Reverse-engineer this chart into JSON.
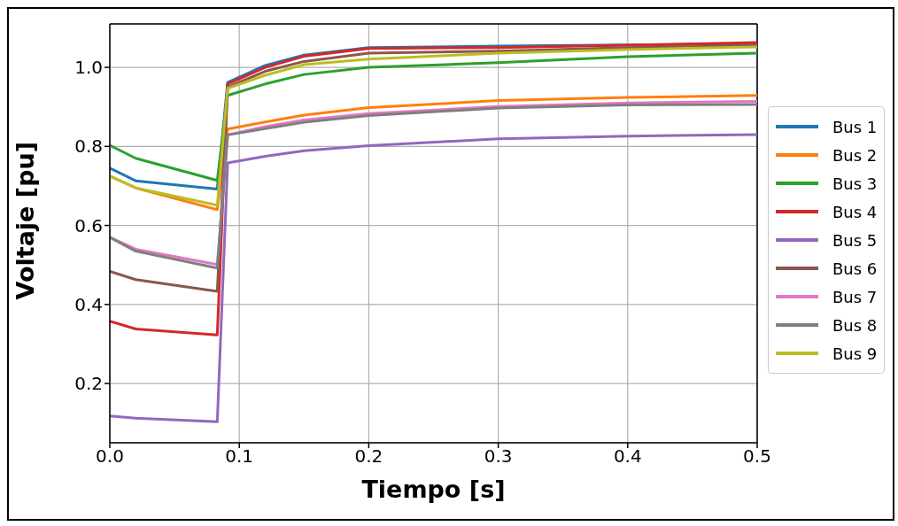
{
  "chart_data": {
    "type": "line",
    "xlabel": "Tiempo [s]",
    "ylabel": "Voltaje [pu]",
    "x": [
      0,
      0.02,
      0.083,
      0.091,
      0.12,
      0.15,
      0.2,
      0.3,
      0.4,
      0.5
    ],
    "series": [
      {
        "name": "Bus 1",
        "color": "#1f77b4",
        "values": [
          0.745,
          0.713,
          0.692,
          0.962,
          1.005,
          1.031,
          1.05,
          1.054,
          1.057,
          1.06
        ]
      },
      {
        "name": "Bus 2",
        "color": "#ff7f0e",
        "values": [
          0.725,
          0.695,
          0.64,
          0.844,
          0.862,
          0.879,
          0.898,
          0.916,
          0.924,
          0.929
        ]
      },
      {
        "name": "Bus 3",
        "color": "#2ca02c",
        "values": [
          0.803,
          0.77,
          0.714,
          0.929,
          0.958,
          0.982,
          1.0,
          1.012,
          1.027,
          1.036
        ]
      },
      {
        "name": "Bus 4",
        "color": "#d62728",
        "values": [
          0.358,
          0.338,
          0.323,
          0.958,
          1.0,
          1.028,
          1.048,
          1.05,
          1.056,
          1.063
        ]
      },
      {
        "name": "Bus 5",
        "color": "#9467bd",
        "values": [
          0.118,
          0.112,
          0.103,
          0.758,
          0.775,
          0.789,
          0.802,
          0.819,
          0.826,
          0.83
        ]
      },
      {
        "name": "Bus 6",
        "color": "#8c564b",
        "values": [
          0.484,
          0.463,
          0.433,
          0.95,
          0.99,
          1.015,
          1.036,
          1.041,
          1.05,
          1.055
        ]
      },
      {
        "name": "Bus 7",
        "color": "#e377c2",
        "values": [
          0.57,
          0.54,
          0.501,
          0.829,
          0.85,
          0.867,
          0.883,
          0.901,
          0.91,
          0.914
        ]
      },
      {
        "name": "Bus 8",
        "color": "#7f7f7f",
        "values": [
          0.57,
          0.535,
          0.492,
          0.829,
          0.845,
          0.861,
          0.878,
          0.897,
          0.905,
          0.906
        ]
      },
      {
        "name": "Bus 9",
        "color": "#bcbd22",
        "values": [
          0.725,
          0.695,
          0.651,
          0.947,
          0.98,
          1.007,
          1.021,
          1.036,
          1.045,
          1.052
        ]
      }
    ],
    "xlim": [
      0,
      0.5
    ],
    "xticks": [
      {
        "value": 0,
        "label": "0.0"
      },
      0.1,
      0.2,
      0.3,
      0.4,
      0.5
    ],
    "ylim": [
      0.05,
      1.11
    ],
    "yticks": [
      0.2,
      0.4,
      0.6,
      0.8,
      {
        "value": 1,
        "label": "1.0"
      }
    ],
    "grid": true,
    "legend": "right",
    "marker": "none",
    "line_style": "solid"
  }
}
